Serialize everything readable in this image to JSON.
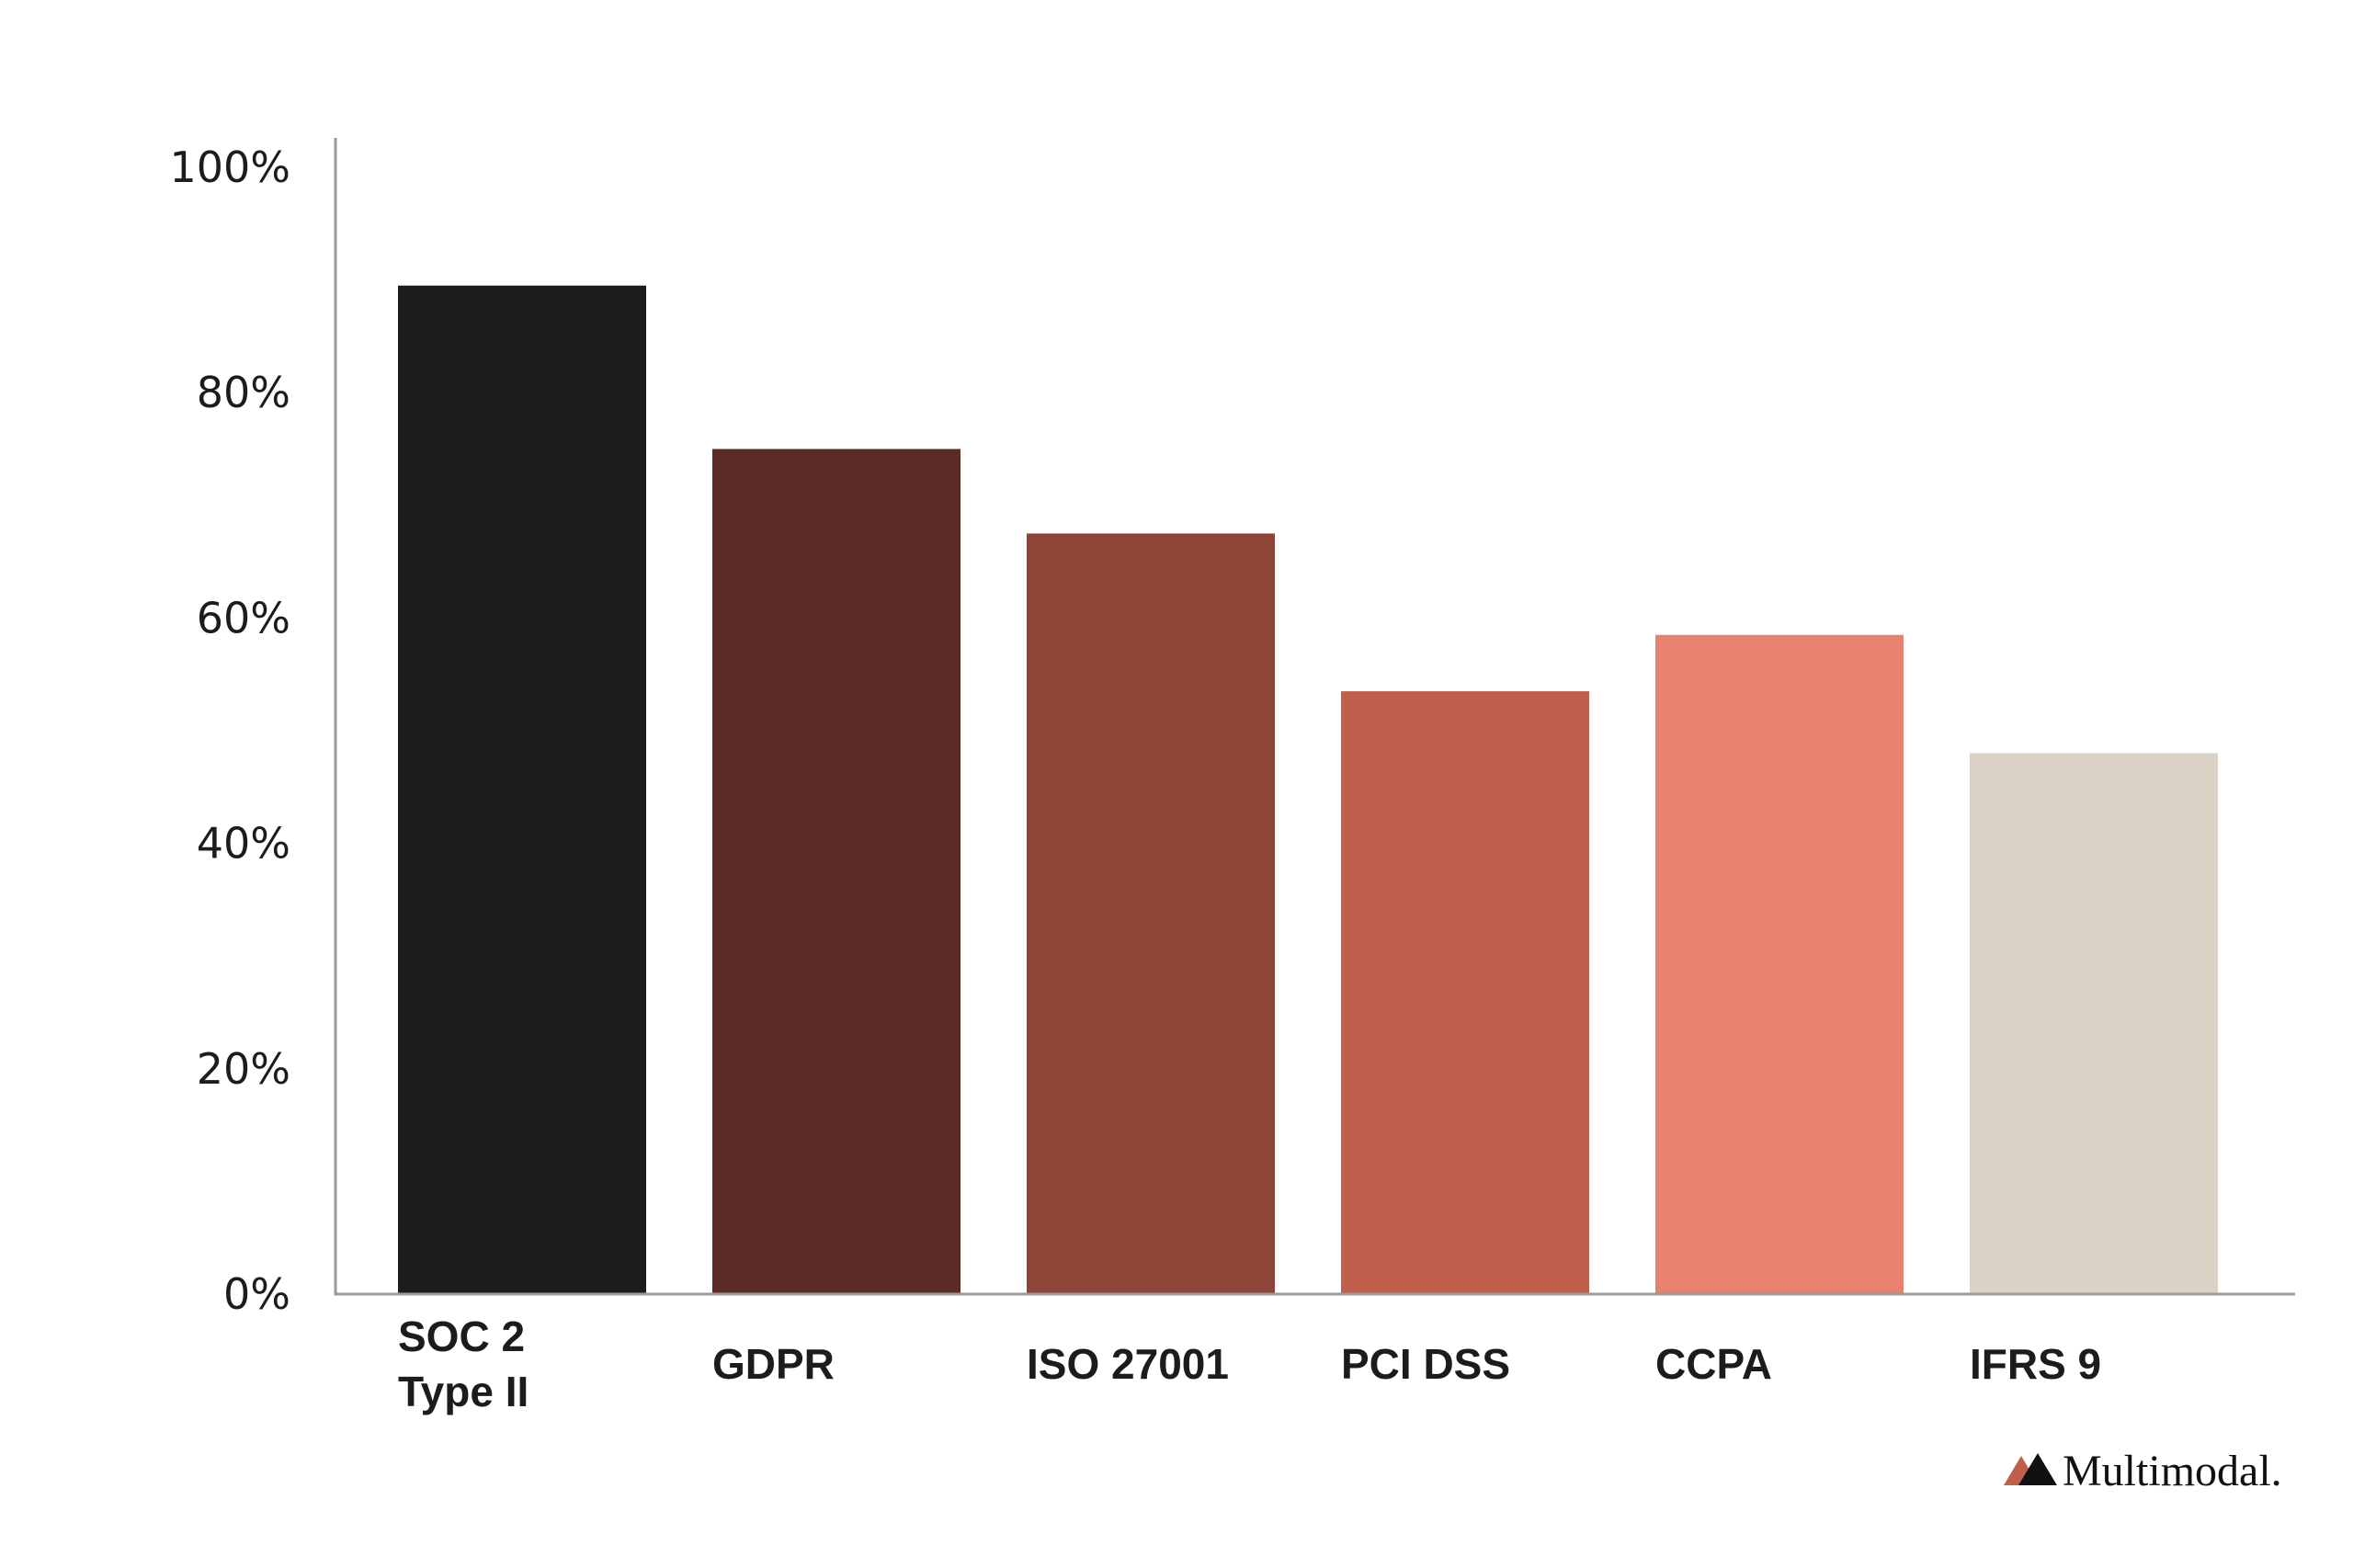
{
  "chart_data": {
    "type": "bar",
    "categories": [
      [
        "SOC 2",
        "Type II"
      ],
      [
        "GDPR"
      ],
      [
        "ISO 27001"
      ],
      [
        "PCI DSS"
      ],
      [
        "CCPA"
      ],
      [
        "IFRS 9"
      ]
    ],
    "values": [
      89.5,
      75,
      67.5,
      53.5,
      58.5,
      48
    ],
    "bar_colors": [
      "#1c1c1c",
      "#5c2b25",
      "#8e4437",
      "#c25f4c",
      "#e8826f",
      "#dad3c5"
    ],
    "y_ticks": [
      "0%",
      "20%",
      "40%",
      "60%",
      "80%",
      "100%"
    ],
    "ylim": [
      0,
      100
    ],
    "title": "",
    "xlabel": "",
    "ylabel": "",
    "grid": false,
    "legend": "none"
  },
  "brand": {
    "name": "Multimodal.",
    "logo": "multimodal-logo-icon",
    "colors": [
      "#c25f4c",
      "#111111"
    ]
  }
}
